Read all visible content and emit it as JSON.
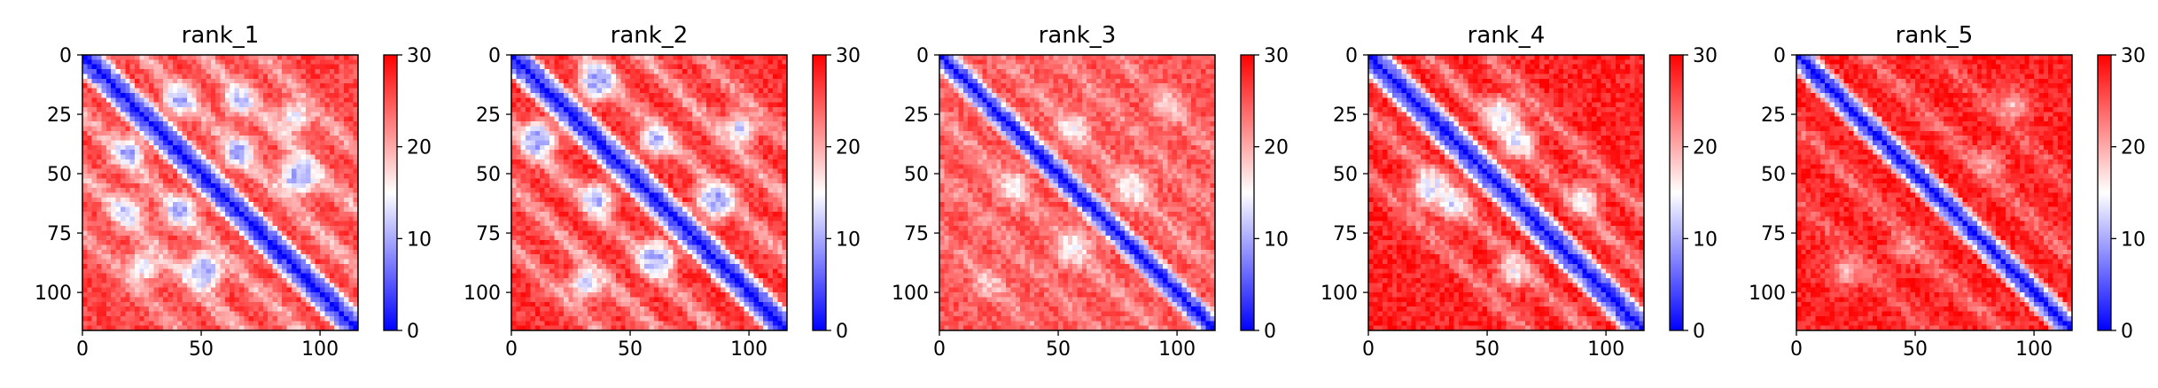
{
  "chart_data": [
    {
      "type": "heatmap",
      "title": "rank_1",
      "matrix_size": 116,
      "xlim": [
        0,
        116
      ],
      "ylim": [
        116,
        0
      ],
      "xticks": [
        0,
        50,
        100
      ],
      "yticks": [
        0,
        25,
        50,
        75,
        100
      ],
      "colorbar": {
        "min": 0,
        "max": 30,
        "ticks": [
          0,
          10,
          20,
          30
        ],
        "colors": [
          "#0000ff",
          "#ffffff",
          "#ff0000"
        ]
      },
      "diagonal_band_width": 6,
      "features": [
        {
          "type": "parallel_band",
          "offset": 25,
          "value": 14
        },
        {
          "type": "parallel_band",
          "offset": 50,
          "value": 13
        },
        {
          "type": "parallel_band",
          "offset": 75,
          "value": 16
        },
        {
          "type": "low_spot",
          "x": 40,
          "y": 18,
          "value": 9
        },
        {
          "type": "low_spot",
          "x": 65,
          "y": 18,
          "value": 11
        },
        {
          "type": "low_spot",
          "x": 40,
          "y": 65,
          "value": 9
        },
        {
          "type": "low_spot",
          "x": 90,
          "y": 50,
          "value": 10
        },
        {
          "type": "low_spot",
          "x": 50,
          "y": 90,
          "value": 10
        },
        {
          "type": "low_spot",
          "x": 88,
          "y": 25,
          "value": 13
        }
      ],
      "background_value": 26
    },
    {
      "type": "heatmap",
      "title": "rank_2",
      "matrix_size": 116,
      "xlim": [
        0,
        116
      ],
      "ylim": [
        116,
        0
      ],
      "xticks": [
        0,
        50,
        100
      ],
      "yticks": [
        0,
        25,
        50,
        75,
        100
      ],
      "colorbar": {
        "min": 0,
        "max": 30,
        "ticks": [
          0,
          10,
          20,
          30
        ],
        "colors": [
          "#0000ff",
          "#ffffff",
          "#ff0000"
        ]
      },
      "diagonal_band_width": 6,
      "features": [
        {
          "type": "parallel_band",
          "offset": 30,
          "value": 15
        },
        {
          "type": "parallel_band",
          "offset": 55,
          "value": 14
        },
        {
          "type": "parallel_band",
          "offset": 80,
          "value": 16
        },
        {
          "type": "low_spot",
          "x": 10,
          "y": 35,
          "value": 9
        },
        {
          "type": "low_spot",
          "x": 35,
          "y": 10,
          "value": 10
        },
        {
          "type": "low_spot",
          "x": 35,
          "y": 60,
          "value": 9
        },
        {
          "type": "low_spot",
          "x": 60,
          "y": 85,
          "value": 10
        },
        {
          "type": "low_spot",
          "x": 85,
          "y": 60,
          "value": 10
        },
        {
          "type": "low_spot",
          "x": 95,
          "y": 30,
          "value": 12
        }
      ],
      "background_value": 27
    },
    {
      "type": "heatmap",
      "title": "rank_3",
      "matrix_size": 116,
      "xlim": [
        0,
        116
      ],
      "ylim": [
        116,
        0
      ],
      "xticks": [
        0,
        50,
        100
      ],
      "yticks": [
        0,
        25,
        50,
        75,
        100
      ],
      "colorbar": {
        "min": 0,
        "max": 30,
        "ticks": [
          0,
          10,
          20,
          30
        ],
        "colors": [
          "#0000ff",
          "#ffffff",
          "#ff0000"
        ]
      },
      "diagonal_band_width": 5,
      "features": [
        {
          "type": "parallel_band",
          "offset": 25,
          "value": 18
        },
        {
          "type": "parallel_band",
          "offset": 50,
          "value": 19
        },
        {
          "type": "parallel_band",
          "offset": 75,
          "value": 19
        },
        {
          "type": "low_spot",
          "x": 30,
          "y": 55,
          "value": 15
        },
        {
          "type": "low_spot",
          "x": 80,
          "y": 55,
          "value": 16
        },
        {
          "type": "low_spot",
          "x": 55,
          "y": 80,
          "value": 16
        },
        {
          "type": "low_spot",
          "x": 95,
          "y": 20,
          "value": 18
        }
      ],
      "background_value": 25
    },
    {
      "type": "heatmap",
      "title": "rank_4",
      "matrix_size": 116,
      "xlim": [
        0,
        116
      ],
      "ylim": [
        116,
        0
      ],
      "xticks": [
        0,
        50,
        100
      ],
      "yticks": [
        0,
        25,
        50,
        75,
        100
      ],
      "colorbar": {
        "min": 0,
        "max": 30,
        "ticks": [
          0,
          10,
          20,
          30
        ],
        "colors": [
          "#0000ff",
          "#ffffff",
          "#ff0000"
        ]
      },
      "diagonal_band_width": 6,
      "features": [
        {
          "type": "parallel_band",
          "offset": 25,
          "value": 17
        },
        {
          "type": "parallel_band",
          "offset": 50,
          "value": 18
        },
        {
          "type": "low_spot",
          "x": 25,
          "y": 55,
          "value": 13
        },
        {
          "type": "low_spot",
          "x": 55,
          "y": 25,
          "value": 14
        },
        {
          "type": "low_spot",
          "x": 60,
          "y": 90,
          "value": 15
        },
        {
          "type": "low_spot",
          "x": 35,
          "y": 62,
          "value": 12
        }
      ],
      "background_value": 28
    },
    {
      "type": "heatmap",
      "title": "rank_5",
      "matrix_size": 116,
      "xlim": [
        0,
        116
      ],
      "ylim": [
        116,
        0
      ],
      "xticks": [
        0,
        50,
        100
      ],
      "yticks": [
        0,
        25,
        50,
        75,
        100
      ],
      "colorbar": {
        "min": 0,
        "max": 30,
        "ticks": [
          0,
          10,
          20,
          30
        ],
        "colors": [
          "#0000ff",
          "#ffffff",
          "#ff0000"
        ]
      },
      "diagonal_band_width": 5,
      "features": [
        {
          "type": "parallel_band",
          "offset": 30,
          "value": 20
        },
        {
          "type": "parallel_band",
          "offset": 60,
          "value": 22
        },
        {
          "type": "low_spot",
          "x": 45,
          "y": 80,
          "value": 20
        },
        {
          "type": "low_spot",
          "x": 90,
          "y": 20,
          "value": 19
        }
      ],
      "background_value": 28
    }
  ]
}
